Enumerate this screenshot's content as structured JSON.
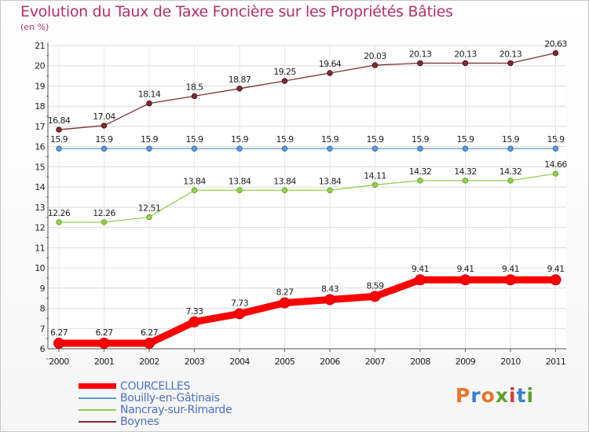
{
  "header": {
    "title": "Evolution du Taux de Taxe Foncière sur les Propriétés Bâties",
    "unit": "(en %)"
  },
  "logo": {
    "text": "Proxiti",
    "colors": [
      "#e8742a",
      "#3b7fd4",
      "#e8742a",
      "#5aa02c",
      "#d43b3b",
      "#3b7fd4",
      "#5aa02c"
    ]
  },
  "chart_data": {
    "type": "line",
    "title": "Evolution du Taux de Taxe Foncière sur les Propriétés Bâties",
    "ylabel": "(en %)",
    "xlabel": "",
    "x": [
      "2000",
      "2001",
      "2002",
      "2003",
      "2004",
      "2005",
      "2006",
      "2007",
      "2008",
      "2009",
      "2010",
      "2011"
    ],
    "ylim": [
      6,
      21
    ],
    "yticks": [
      6,
      7,
      8,
      9,
      10,
      11,
      12,
      13,
      14,
      15,
      16,
      17,
      18,
      19,
      20,
      21
    ],
    "grid": true,
    "legend": "bottom-left",
    "series": [
      {
        "name": "COURCELLES",
        "color": "#ff0000",
        "emphasis": true,
        "values": [
          6.27,
          6.27,
          6.27,
          7.33,
          7.73,
          8.27,
          8.43,
          8.59,
          9.41,
          9.41,
          9.41,
          9.41
        ],
        "labels": [
          "6.27",
          "6.27",
          "6.27",
          "7.33",
          "7.73",
          "8.27",
          "8.43",
          "8.59",
          "9.41",
          "9.41",
          "9.41",
          "9.41"
        ]
      },
      {
        "name": "Bouilly-en-Gâtinais",
        "color": "#5b9bd5",
        "emphasis": false,
        "values": [
          15.9,
          15.9,
          15.9,
          15.9,
          15.9,
          15.9,
          15.9,
          15.9,
          15.9,
          15.9,
          15.9,
          15.9
        ],
        "labels": [
          "15.9",
          "15.9",
          "15.9",
          "15.9",
          "15.9",
          "15.9",
          "15.9",
          "15.9",
          "15.9",
          "15.9",
          "15.9",
          "15.9"
        ]
      },
      {
        "name": "Nancray-sur-Rimarde",
        "color": "#92d050",
        "emphasis": false,
        "values": [
          12.26,
          12.26,
          12.51,
          13.84,
          13.84,
          13.84,
          13.84,
          14.11,
          14.32,
          14.32,
          14.32,
          14.66
        ],
        "labels": [
          "12.26",
          "12.26",
          "12.51",
          "13.84",
          "13.84",
          "13.84",
          "13.84",
          "14.11",
          "14.32",
          "14.32",
          "14.32",
          "14.66"
        ]
      },
      {
        "name": "Boynes",
        "color": "#7b2f35",
        "emphasis": false,
        "values": [
          16.84,
          17.04,
          18.14,
          18.5,
          18.87,
          19.25,
          19.64,
          20.03,
          20.13,
          20.13,
          20.13,
          20.63
        ],
        "labels": [
          "16.84",
          "17.04",
          "18.14",
          "18.5",
          "18.87",
          "19.25",
          "19.64",
          "20.03",
          "20.13",
          "20.13",
          "20.13",
          "20.63"
        ]
      }
    ]
  }
}
